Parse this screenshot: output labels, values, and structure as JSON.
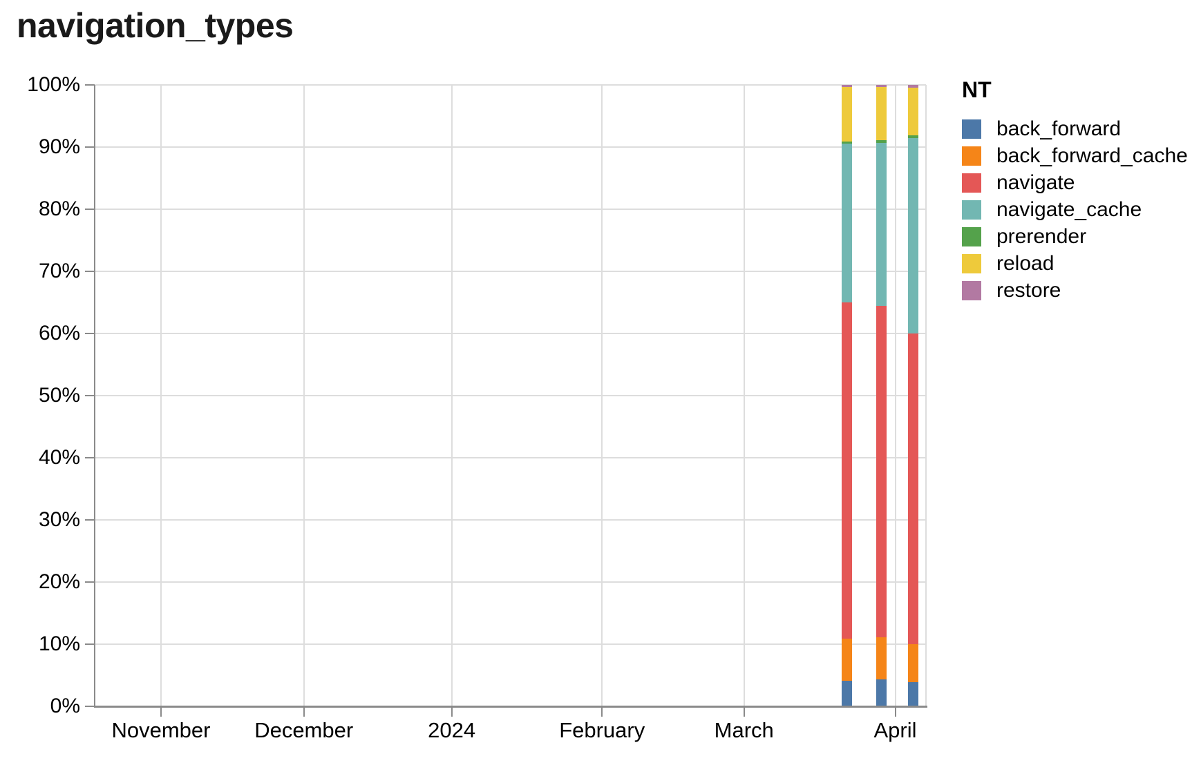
{
  "title": "navigation_types",
  "colors": {
    "background": "#ffffff",
    "grid": "#dddddd",
    "axis_domain": "#8a8a8a",
    "tick": "#8a8a8a",
    "label": "#000000",
    "title": "#1a1a1a"
  },
  "chart_data": {
    "type": "bar",
    "stacked": true,
    "normalized": true,
    "title": "navigation_types",
    "legend_title": "NT",
    "legend_position": "right",
    "grid": true,
    "series_names": [
      "back_forward",
      "back_forward_cache",
      "navigate",
      "navigate_cache",
      "prerender",
      "reload",
      "restore"
    ],
    "series_colors": [
      "#4c78a8",
      "#f58518",
      "#e45756",
      "#72b7b2",
      "#54a24b",
      "#eeca3b",
      "#b279a2"
    ],
    "y_axis": {
      "min": 0,
      "max": 100,
      "unit": "%",
      "tick_labels": [
        "0%",
        "10%",
        "20%",
        "30%",
        "40%",
        "50%",
        "60%",
        "70%",
        "80%",
        "90%",
        "100%"
      ],
      "tick_values": [
        0,
        10,
        20,
        30,
        40,
        50,
        60,
        70,
        80,
        90,
        100
      ]
    },
    "x_axis": {
      "tick_labels": [
        "November",
        "December",
        "2024",
        "February",
        "March",
        "April"
      ],
      "tick_positions_pct": [
        7.9,
        25.1,
        42.9,
        61.0,
        78.1,
        96.3
      ],
      "grid_positions_pct": [
        7.9,
        25.1,
        42.9,
        61.0,
        78.1,
        96.3,
        100
      ]
    },
    "bars": [
      {
        "x_pct": 90.5,
        "values": {
          "back_forward": 4.1,
          "back_forward_cache": 6.8,
          "navigate": 54.1,
          "navigate_cache": 25.6,
          "prerender": 0.3,
          "reload": 8.8,
          "restore": 0.3
        }
      },
      {
        "x_pct": 94.6,
        "values": {
          "back_forward": 4.3,
          "back_forward_cache": 6.8,
          "navigate": 53.3,
          "navigate_cache": 26.3,
          "prerender": 0.4,
          "reload": 8.6,
          "restore": 0.3
        }
      },
      {
        "x_pct": 98.5,
        "values": {
          "back_forward": 3.9,
          "back_forward_cache": 6.1,
          "navigate": 50.0,
          "navigate_cache": 31.4,
          "prerender": 0.5,
          "reload": 7.7,
          "restore": 0.4
        }
      }
    ]
  }
}
